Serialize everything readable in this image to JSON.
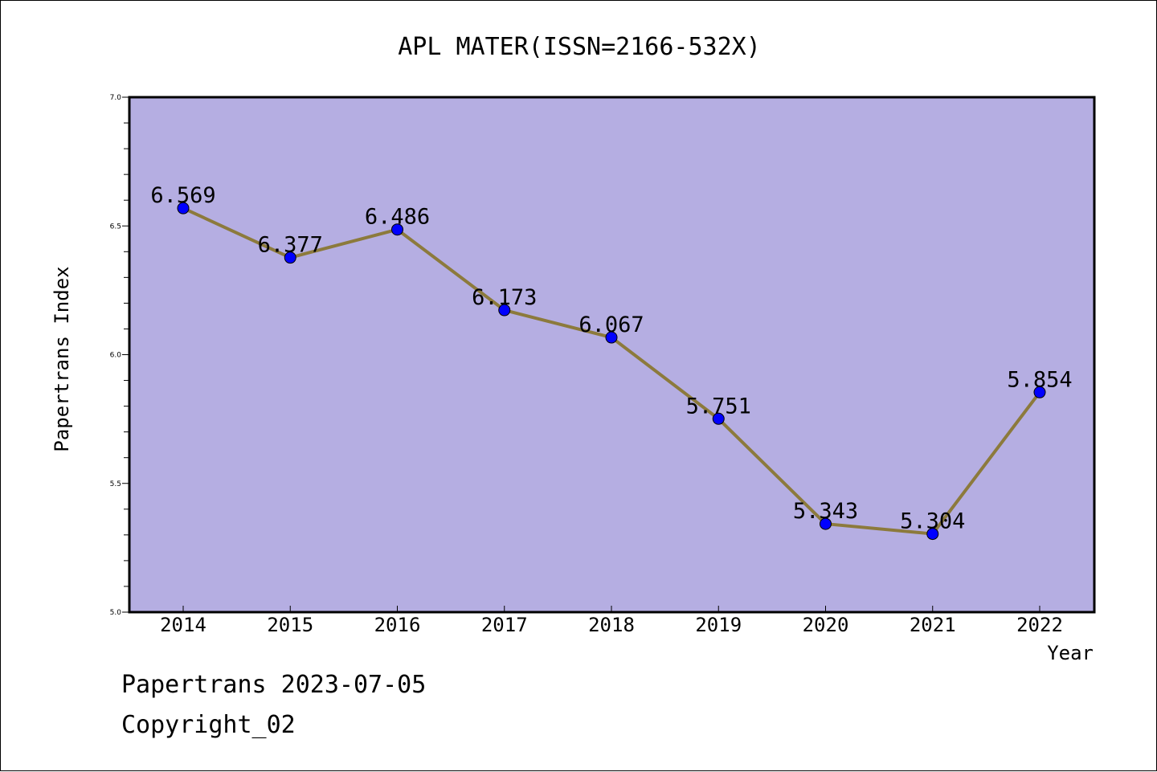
{
  "chart_data": {
    "type": "line",
    "title": "APL MATER(ISSN=2166-532X)",
    "xlabel": "Year",
    "ylabel": "Papertrans Index",
    "x": [
      "2014",
      "2015",
      "2016",
      "2017",
      "2018",
      "2019",
      "2020",
      "2021",
      "2022"
    ],
    "series": [
      {
        "values": [
          6.569,
          6.377,
          6.486,
          6.173,
          6.067,
          5.751,
          5.343,
          5.304,
          5.854
        ],
        "data_labels": [
          "6.569",
          "6.377",
          "6.486",
          "6.173",
          "6.067",
          "5.751",
          "5.343",
          "5.304",
          "5.854"
        ]
      }
    ],
    "ylim": [
      5.0,
      7.0
    ],
    "yticks": [
      "5.0",
      "5.5",
      "6.0",
      "6.5",
      "7.0"
    ],
    "grid": false,
    "colors": {
      "plot_background": "#b5aee2",
      "line": "#8c7a3c",
      "marker": "#0000ff"
    }
  },
  "footer": {
    "line1": "Papertrans 2023-07-05",
    "line2": "Copyright_02"
  }
}
